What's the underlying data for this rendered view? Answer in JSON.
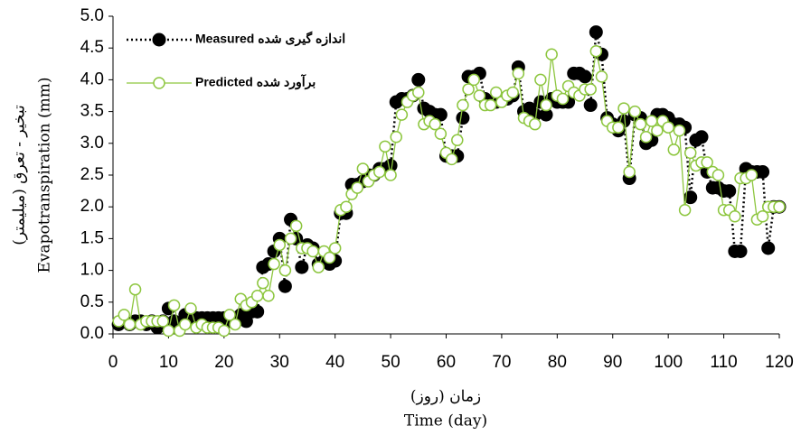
{
  "chart_data": {
    "type": "line",
    "y_title_fa": "تبخیر - تعرق (میلیمتر)",
    "y_title": "Evapotranspiration (mm)",
    "x_title_fa": "زمان (روز)",
    "x_title": "Time (day)",
    "x": [
      1,
      2,
      3,
      4,
      5,
      6,
      7,
      8,
      9,
      10,
      11,
      12,
      13,
      14,
      15,
      16,
      17,
      18,
      19,
      20,
      21,
      22,
      23,
      24,
      25,
      26,
      27,
      28,
      29,
      30,
      31,
      32,
      33,
      34,
      35,
      36,
      37,
      38,
      39,
      40,
      41,
      42,
      43,
      44,
      45,
      46,
      47,
      48,
      49,
      50,
      51,
      52,
      53,
      54,
      55,
      56,
      57,
      58,
      59,
      60,
      61,
      62,
      63,
      64,
      65,
      66,
      67,
      68,
      69,
      70,
      71,
      72,
      73,
      74,
      75,
      76,
      77,
      78,
      79,
      80,
      81,
      82,
      83,
      84,
      85,
      86,
      87,
      88,
      89,
      90,
      91,
      92,
      93,
      94,
      95,
      96,
      97,
      98,
      99,
      100,
      101,
      102,
      103,
      104,
      105,
      106,
      107,
      108,
      109,
      110,
      111,
      112,
      113,
      114,
      115,
      116,
      117,
      118,
      119,
      120
    ],
    "series": [
      {
        "name": "Measured اندازه گیری شده",
        "color": "#000000",
        "values": [
          0.15,
          0.2,
          0.15,
          0.2,
          0.2,
          0.15,
          0.2,
          0.1,
          0.2,
          0.4,
          0.2,
          0.1,
          0.3,
          0.25,
          0.25,
          0.25,
          0.25,
          0.25,
          0.25,
          0.25,
          0.2,
          0.25,
          0.3,
          0.2,
          0.35,
          0.35,
          1.05,
          1.1,
          1.3,
          1.5,
          0.75,
          1.8,
          1.5,
          1.05,
          1.4,
          1.35,
          1.1,
          1.15,
          1.1,
          1.15,
          1.9,
          1.9,
          2.35,
          2.35,
          2.4,
          2.5,
          2.5,
          2.6,
          2.6,
          2.65,
          3.65,
          3.7,
          3.7,
          3.75,
          4.0,
          3.55,
          3.5,
          3.45,
          3.45,
          2.8,
          2.8,
          2.8,
          3.4,
          4.05,
          4.05,
          4.1,
          3.7,
          3.65,
          3.65,
          3.7,
          3.7,
          3.75,
          4.2,
          3.5,
          3.55,
          3.45,
          3.65,
          3.45,
          3.7,
          3.65,
          3.65,
          3.65,
          4.1,
          4.1,
          4.05,
          3.6,
          4.75,
          4.4,
          3.4,
          3.3,
          3.2,
          3.35,
          2.45,
          3.45,
          3.4,
          3.0,
          3.05,
          3.45,
          3.45,
          3.4,
          3.3,
          3.3,
          3.25,
          2.15,
          3.05,
          3.1,
          2.55,
          2.3,
          2.3,
          2.25,
          2.25,
          1.3,
          1.3,
          2.6,
          2.55,
          2.55,
          2.55,
          1.35,
          2.0,
          2.0
        ]
      },
      {
        "name": "Predicted برآورد شده",
        "color": "#8dc63f",
        "values": [
          0.2,
          0.3,
          0.15,
          0.7,
          0.15,
          0.2,
          0.2,
          0.2,
          0.2,
          0.05,
          0.45,
          0.05,
          0.15,
          0.4,
          0.1,
          0.15,
          0.1,
          0.1,
          0.1,
          0.05,
          0.3,
          0.15,
          0.55,
          0.45,
          0.5,
          0.6,
          0.8,
          0.6,
          1.1,
          1.4,
          1.0,
          1.5,
          1.7,
          1.35,
          1.35,
          1.3,
          1.05,
          1.3,
          1.2,
          1.35,
          1.95,
          2.0,
          2.2,
          2.3,
          2.6,
          2.4,
          2.5,
          2.55,
          2.95,
          2.5,
          3.1,
          3.45,
          3.65,
          3.75,
          3.8,
          3.3,
          3.35,
          3.3,
          3.15,
          2.85,
          2.75,
          3.05,
          3.6,
          3.85,
          4.0,
          3.75,
          3.6,
          3.6,
          3.8,
          3.65,
          3.75,
          3.8,
          4.1,
          3.4,
          3.35,
          3.3,
          4.0,
          3.6,
          4.4,
          3.75,
          3.7,
          3.9,
          3.8,
          3.75,
          3.85,
          3.85,
          4.45,
          4.05,
          3.35,
          3.25,
          3.25,
          3.55,
          2.55,
          3.5,
          3.3,
          3.1,
          3.35,
          3.2,
          3.35,
          3.25,
          2.9,
          3.2,
          1.95,
          2.85,
          2.65,
          2.7,
          2.7,
          2.55,
          2.5,
          1.95,
          1.95,
          1.85,
          2.45,
          2.45,
          2.5,
          1.8,
          1.85,
          2.0,
          2.0,
          2.0
        ]
      }
    ],
    "xlim": [
      0,
      120
    ],
    "xticks": [
      0,
      10,
      20,
      30,
      40,
      50,
      60,
      70,
      80,
      90,
      100,
      110,
      120
    ],
    "ylim": [
      0,
      5
    ],
    "yticks": [
      {
        "value": 0,
        "label": "0.0"
      },
      0.5,
      {
        "value": 1,
        "label": "1.0"
      },
      1.5,
      {
        "value": 2,
        "label": "2.0"
      },
      2.5,
      {
        "value": 3,
        "label": "3.0"
      },
      3.5,
      {
        "value": 4,
        "label": "4.0"
      },
      4.5,
      {
        "value": 5,
        "label": "5.0"
      }
    ],
    "legend": "upper-left"
  }
}
